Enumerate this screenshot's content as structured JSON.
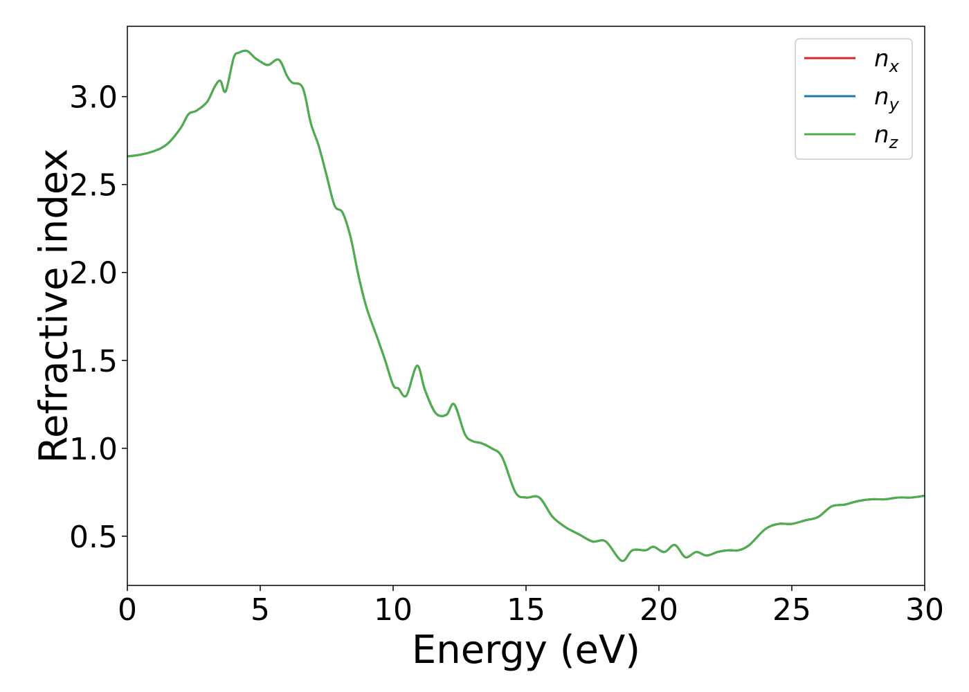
{
  "chart_data": {
    "type": "line",
    "xlabel": "Energy (eV)",
    "ylabel": "Refractive index",
    "xlim": [
      0,
      30
    ],
    "ylim": [
      0.22,
      3.4
    ],
    "x_ticks": [
      0,
      5,
      10,
      15,
      20,
      25,
      30
    ],
    "y_ticks": [
      0.5,
      1.0,
      1.5,
      2.0,
      2.5,
      3.0
    ],
    "x_tick_labels": [
      "0",
      "5",
      "10",
      "15",
      "20",
      "25",
      "30"
    ],
    "y_tick_labels": [
      "0.5",
      "1.0",
      "1.5",
      "2.0",
      "2.5",
      "3.0"
    ],
    "grid": false,
    "legend_position": "top-right",
    "x": [
      0,
      0.5,
      1.0,
      1.5,
      2.0,
      2.3,
      2.6,
      3.0,
      3.3,
      3.5,
      3.7,
      4.0,
      4.2,
      4.5,
      4.8,
      5.0,
      5.3,
      5.7,
      6.0,
      6.2,
      6.6,
      6.9,
      7.2,
      7.5,
      7.8,
      8.1,
      8.4,
      8.7,
      9.0,
      9.4,
      9.7,
      10.0,
      10.2,
      10.5,
      10.9,
      11.2,
      11.6,
      12.0,
      12.3,
      12.7,
      13.0,
      13.3,
      13.7,
      14.1,
      14.6,
      15.0,
      15.5,
      16.0,
      16.5,
      17.0,
      17.5,
      18.0,
      18.6,
      19.0,
      19.5,
      19.8,
      20.2,
      20.6,
      21.0,
      21.4,
      21.8,
      22.2,
      22.6,
      23.0,
      23.4,
      24.0,
      24.5,
      25.0,
      25.5,
      26.0,
      26.5,
      27.0,
      27.5,
      28.0,
      28.5,
      29.0,
      29.5,
      30.0
    ],
    "series": [
      {
        "name": "x",
        "color": "#d62728",
        "values": [
          2.66,
          2.67,
          2.69,
          2.73,
          2.82,
          2.9,
          2.92,
          2.97,
          3.06,
          3.09,
          3.03,
          3.22,
          3.25,
          3.26,
          3.22,
          3.2,
          3.18,
          3.21,
          3.12,
          3.08,
          3.05,
          2.85,
          2.72,
          2.55,
          2.38,
          2.34,
          2.2,
          1.98,
          1.8,
          1.63,
          1.5,
          1.36,
          1.34,
          1.3,
          1.47,
          1.33,
          1.2,
          1.19,
          1.25,
          1.08,
          1.04,
          1.03,
          1.0,
          0.95,
          0.75,
          0.72,
          0.72,
          0.61,
          0.55,
          0.51,
          0.47,
          0.47,
          0.36,
          0.42,
          0.42,
          0.44,
          0.41,
          0.45,
          0.38,
          0.41,
          0.39,
          0.41,
          0.42,
          0.42,
          0.45,
          0.54,
          0.57,
          0.57,
          0.59,
          0.61,
          0.67,
          0.68,
          0.7,
          0.71,
          0.71,
          0.72,
          0.72,
          0.73
        ]
      },
      {
        "name": "y",
        "color": "#1f77b4",
        "values": [
          2.66,
          2.67,
          2.69,
          2.73,
          2.82,
          2.9,
          2.92,
          2.97,
          3.06,
          3.09,
          3.03,
          3.22,
          3.25,
          3.26,
          3.22,
          3.2,
          3.18,
          3.21,
          3.12,
          3.08,
          3.05,
          2.85,
          2.72,
          2.55,
          2.38,
          2.34,
          2.2,
          1.98,
          1.8,
          1.63,
          1.5,
          1.36,
          1.34,
          1.3,
          1.47,
          1.33,
          1.2,
          1.19,
          1.25,
          1.08,
          1.04,
          1.03,
          1.0,
          0.95,
          0.75,
          0.72,
          0.72,
          0.61,
          0.55,
          0.51,
          0.47,
          0.47,
          0.36,
          0.42,
          0.42,
          0.44,
          0.41,
          0.45,
          0.38,
          0.41,
          0.39,
          0.41,
          0.42,
          0.42,
          0.45,
          0.54,
          0.57,
          0.57,
          0.59,
          0.61,
          0.67,
          0.68,
          0.7,
          0.71,
          0.71,
          0.72,
          0.72,
          0.73
        ]
      },
      {
        "name": "z",
        "color": "#4daf4a",
        "values": [
          2.66,
          2.67,
          2.69,
          2.73,
          2.82,
          2.9,
          2.92,
          2.97,
          3.06,
          3.09,
          3.03,
          3.22,
          3.25,
          3.26,
          3.22,
          3.2,
          3.18,
          3.21,
          3.12,
          3.08,
          3.05,
          2.85,
          2.72,
          2.55,
          2.38,
          2.34,
          2.2,
          1.98,
          1.8,
          1.63,
          1.5,
          1.36,
          1.34,
          1.3,
          1.47,
          1.33,
          1.2,
          1.19,
          1.25,
          1.08,
          1.04,
          1.03,
          1.0,
          0.95,
          0.75,
          0.72,
          0.72,
          0.61,
          0.55,
          0.51,
          0.47,
          0.47,
          0.36,
          0.42,
          0.42,
          0.44,
          0.41,
          0.45,
          0.38,
          0.41,
          0.39,
          0.41,
          0.42,
          0.42,
          0.45,
          0.54,
          0.57,
          0.57,
          0.59,
          0.61,
          0.67,
          0.68,
          0.7,
          0.71,
          0.71,
          0.72,
          0.72,
          0.73
        ]
      }
    ]
  },
  "legend": {
    "items": [
      {
        "symbol": "n",
        "subscript": "x",
        "color": "#d62728"
      },
      {
        "symbol": "n",
        "subscript": "y",
        "color": "#1f77b4"
      },
      {
        "symbol": "n",
        "subscript": "z",
        "color": "#4daf4a"
      }
    ]
  }
}
